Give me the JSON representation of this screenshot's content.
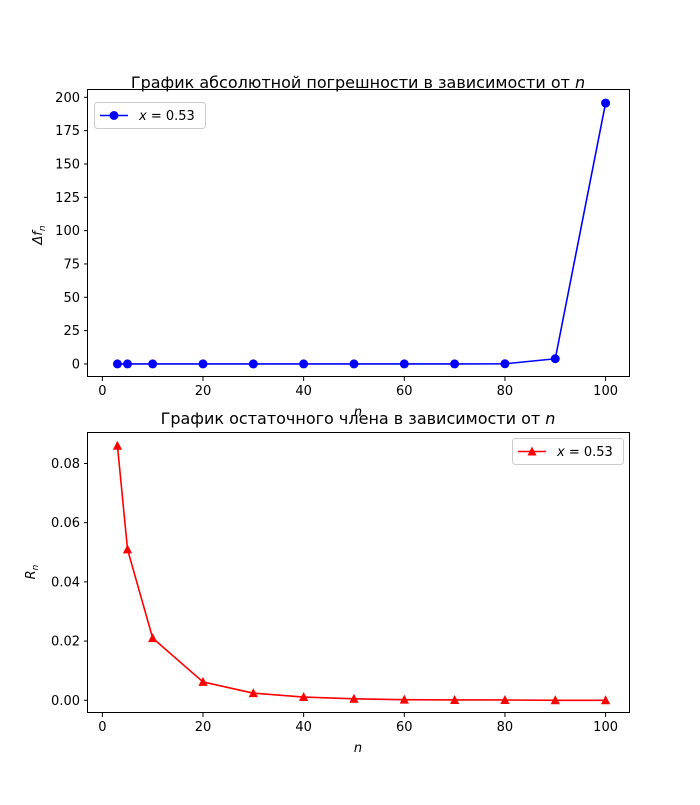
{
  "chart_data": [
    {
      "type": "line",
      "title_prefix": "График абсолютной погрешности в зависимости от ",
      "title_var": "n",
      "xlabel": "n",
      "ylabel": "Δf",
      "ylabel_sub": "n",
      "xlim": [
        -2.85,
        104.85
      ],
      "ylim": [
        -9.8,
        205.5
      ],
      "xticks": [
        0,
        20,
        40,
        60,
        80,
        100
      ],
      "yticks": [
        0,
        25,
        50,
        75,
        100,
        125,
        150,
        175,
        200
      ],
      "ytick_labels": [
        "0",
        "25",
        "50",
        "75",
        "100",
        "125",
        "150",
        "175",
        "200"
      ],
      "legend_position": "upper-left",
      "series": [
        {
          "name_var": "x",
          "name_rest": " = 0.53",
          "color": "#0000ff",
          "marker": "circle",
          "x": [
            3,
            5,
            10,
            20,
            30,
            40,
            50,
            60,
            70,
            80,
            90,
            100
          ],
          "y": [
            0.0,
            0.0,
            0.0,
            0.0,
            0.0,
            0.0,
            0.0,
            0.0,
            0.0,
            0.1,
            3.9,
            195.7
          ]
        }
      ]
    },
    {
      "type": "line",
      "title_prefix": "График остаточного члена в зависимости от ",
      "title_var": "n",
      "xlabel": "n",
      "ylabel": "R",
      "ylabel_sub": "n",
      "xlim": [
        -2.85,
        104.85
      ],
      "ylim": [
        -0.0043,
        0.0903
      ],
      "xticks": [
        0,
        20,
        40,
        60,
        80,
        100
      ],
      "yticks": [
        0.0,
        0.02,
        0.04,
        0.06,
        0.08
      ],
      "ytick_labels": [
        "0.00",
        "0.02",
        "0.04",
        "0.06",
        "0.08"
      ],
      "legend_position": "upper-right",
      "series": [
        {
          "name_var": "x",
          "name_rest": " = 0.53",
          "color": "#ff0000",
          "marker": "triangle",
          "x": [
            3,
            5,
            10,
            20,
            30,
            40,
            50,
            60,
            70,
            80,
            90,
            100
          ],
          "y": [
            0.086,
            0.051,
            0.021,
            0.0062,
            0.0024,
            0.0011,
            0.0005,
            0.0002,
            0.0001,
            0.0001,
            0.0,
            0.0
          ]
        }
      ]
    }
  ]
}
